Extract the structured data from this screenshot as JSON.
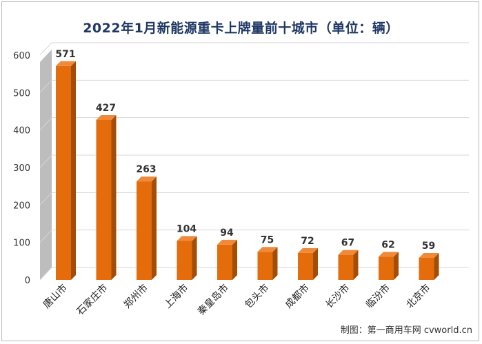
{
  "chart_data": {
    "type": "bar",
    "title": "2022年1月新能源重卡上牌量前十城市（单位：辆）",
    "categories": [
      "唐山市",
      "石家庄市",
      "郑州市",
      "上海市",
      "秦皇岛市",
      "包头市",
      "成都市",
      "长沙市",
      "临汾市",
      "北京市"
    ],
    "values": [
      571,
      427,
      263,
      104,
      94,
      75,
      72,
      67,
      62,
      59
    ],
    "yticks": [
      0,
      100,
      200,
      300,
      400,
      500,
      600
    ],
    "ylim": [
      0,
      600
    ],
    "grid": true,
    "bar_color": "#e46c0a",
    "bar_side_color": "#a34e08",
    "bar_top_color": "#f08a3a"
  },
  "credit": "制图：第一商用车网 cvworld.cn"
}
